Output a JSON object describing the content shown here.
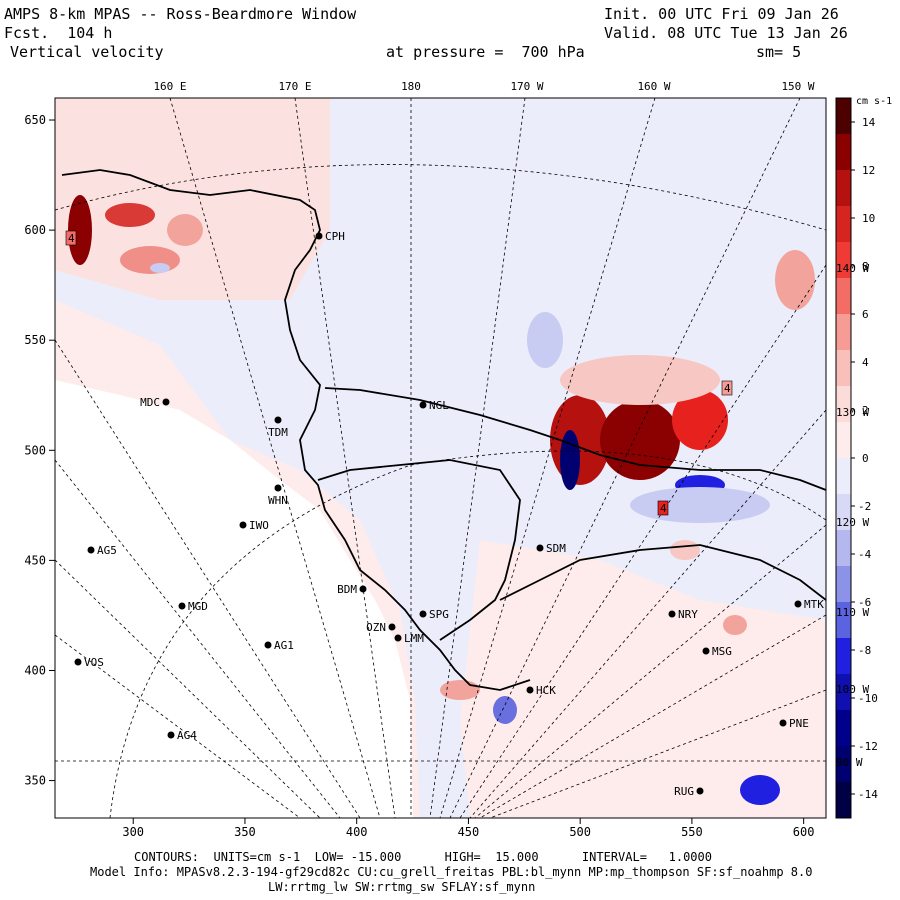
{
  "header": {
    "title": "AMPS 8-km MPAS -- Ross-Beardmore Window",
    "forecast": "Fcst.  104 h",
    "field": "Vertical velocity",
    "init": "Init. 00 UTC Fri 09 Jan 26",
    "valid": "Valid. 08 UTC Tue 13 Jan 26",
    "pressure": "at pressure =  700 hPa",
    "smoothing": "sm= 5"
  },
  "colorbar": {
    "units": "cm s-1",
    "tick_labels": [
      "14",
      "12",
      "10",
      "8",
      "6",
      "4",
      "2",
      "0",
      "-2",
      "-4",
      "-6",
      "-8",
      "-10",
      "-12",
      "-14"
    ],
    "range": [
      -15,
      15
    ]
  },
  "axes": {
    "x_ticks": [
      "300",
      "350",
      "400",
      "450",
      "500",
      "550",
      "600"
    ],
    "y_ticks": [
      "650",
      "600",
      "550",
      "500",
      "450",
      "400",
      "350"
    ],
    "lon_labels": [
      "160 E",
      "170 E",
      "180",
      "170 W",
      "160 W",
      "150 W"
    ],
    "side_lon_labels": [
      "140 W",
      "130 W",
      "120 W",
      "110 W",
      "100 W",
      "90 W"
    ]
  },
  "stations": [
    {
      "name": "CPH"
    },
    {
      "name": "NGL"
    },
    {
      "name": "MDC"
    },
    {
      "name": "TDM"
    },
    {
      "name": "WHN"
    },
    {
      "name": "IWO"
    },
    {
      "name": "AG5"
    },
    {
      "name": "SDM"
    },
    {
      "name": "BDM"
    },
    {
      "name": "MGD"
    },
    {
      "name": "SPG"
    },
    {
      "name": "OZN"
    },
    {
      "name": "LMM"
    },
    {
      "name": "AG1"
    },
    {
      "name": "VOS"
    },
    {
      "name": "HCK"
    },
    {
      "name": "NRY"
    },
    {
      "name": "MTK"
    },
    {
      "name": "MSG"
    },
    {
      "name": "AG4"
    },
    {
      "name": "PNE"
    },
    {
      "name": "RUG"
    }
  ],
  "footer": {
    "contours": "CONTOURS:  UNITS=cm s-1  LOW= -15.000      HIGH=  15.000      INTERVAL=   1.0000",
    "model_info": "Model Info: MPASv8.2.3-194-gf29cd82c CU:cu_grell_freitas PBL:bl_mynn MP:mp_thompson SF:sf_noahmp 8.0",
    "model_info2": "LW:rrtmg_lw SW:rrtmg_sw SFLAY:sf_mynn"
  },
  "colors": {
    "strong_red": "#8b0000",
    "red": "#e6211e",
    "light_red": "#f7c7c3",
    "pale_red": "#fdeceb",
    "pale_blue": "#ecedfa",
    "light_blue": "#c8cbf2",
    "blue": "#2020e0",
    "strong_blue": "#000070"
  }
}
